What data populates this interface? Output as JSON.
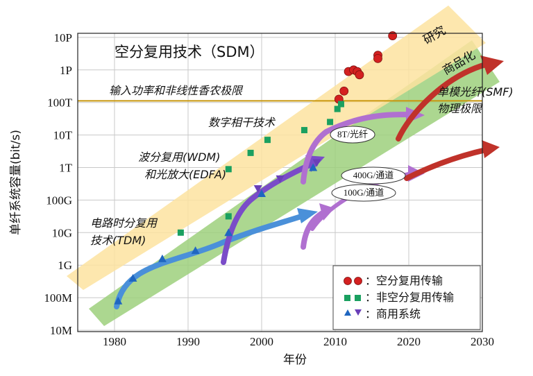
{
  "chart_data": {
    "type": "scatter",
    "title": "空分复用技术（SDM）",
    "xlabel": "年份",
    "ylabel": "单纤系统容量(bit/s)",
    "xlim": [
      1975,
      2030
    ],
    "x_ticks": [
      1980,
      1990,
      2000,
      2010,
      2020,
      2030
    ],
    "y_scale": "log",
    "y_ticks": [
      "10M",
      "100M",
      "1G",
      "10G",
      "100G",
      "1T",
      "10T",
      "100T",
      "1P",
      "10P"
    ],
    "y_ticks_log10": [
      7,
      8,
      9,
      10,
      11,
      12,
      13,
      14,
      15,
      16
    ],
    "grid": true,
    "legend_position": "bottom-right",
    "threshold_line": {
      "label": "输入功率和非线性香农极限",
      "value_log10": 14.05,
      "color": "#c8960c"
    },
    "series": [
      {
        "name": "空分复用传输",
        "marker": "circle",
        "color": "#d42020",
        "points": [
          {
            "x": 2010.5,
            "y_log10": 14.1
          },
          {
            "x": 2011.2,
            "y_log10": 14.35
          },
          {
            "x": 2011.8,
            "y_log10": 14.95
          },
          {
            "x": 2012.5,
            "y_log10": 15.0
          },
          {
            "x": 2013.0,
            "y_log10": 14.95
          },
          {
            "x": 2013.3,
            "y_log10": 14.85
          },
          {
            "x": 2015.8,
            "y_log10": 15.45
          },
          {
            "x": 2015.8,
            "y_log10": 15.35
          },
          {
            "x": 2017.8,
            "y_log10": 16.05
          }
        ]
      },
      {
        "name": "非空分复用传输",
        "marker": "square",
        "color": "#1aa060",
        "points": [
          {
            "x": 1989,
            "y_log10": 10.0
          },
          {
            "x": 1995.5,
            "y_log10": 10.5
          },
          {
            "x": 1995.5,
            "y_log10": 11.95
          },
          {
            "x": 1998.5,
            "y_log10": 12.45
          },
          {
            "x": 2000.8,
            "y_log10": 12.85
          },
          {
            "x": 2005.8,
            "y_log10": 13.15
          },
          {
            "x": 2009.3,
            "y_log10": 13.4
          },
          {
            "x": 2010.3,
            "y_log10": 13.8
          },
          {
            "x": 2010.8,
            "y_log10": 13.95
          }
        ]
      },
      {
        "name": "商用系统",
        "marker": "triangle",
        "color": "#1f66c0",
        "points": [
          {
            "x": 1980.5,
            "y_log10": 7.9
          },
          {
            "x": 1982.5,
            "y_log10": 8.6
          },
          {
            "x": 1986.5,
            "y_log10": 9.2
          },
          {
            "x": 1991,
            "y_log10": 9.45
          },
          {
            "x": 1995.5,
            "y_log10": 10.0
          },
          {
            "x": 2000,
            "y_log10": 11.2
          },
          {
            "x": 2007,
            "y_log10": 12.0
          }
        ]
      },
      {
        "name": "商用系统 (WDM)",
        "marker": "triangle-down",
        "color": "#6a3fb8",
        "points": [
          {
            "x": 1999.5,
            "y_log10": 11.35
          },
          {
            "x": 2002.5,
            "y_log10": 11.65
          },
          {
            "x": 2007.5,
            "y_log10": 12.15
          }
        ]
      }
    ],
    "annotations": {
      "tdm": [
        "电路时分复用",
        "技术(TDM)"
      ],
      "wdm": [
        "波分复用(WDM)",
        "和光放大(EDFA)"
      ],
      "coherent": "数字相干技术",
      "smf": [
        "单模光纤(SMF)",
        "物理极限"
      ],
      "research": "研究",
      "commercial": "商品化",
      "b1": "8T/光纤",
      "b2": "400G/通道",
      "b3": "100G/通道"
    },
    "legend": [
      {
        "label": "：空分复用传输",
        "color": "#d42020"
      },
      {
        "label": "：非空分复用传输",
        "color": "#1aa060"
      },
      {
        "label": "：商用系统",
        "color": "#1f66c0",
        "color2": "#6a3fb8"
      }
    ],
    "band_colors": {
      "research": "#fde3a0",
      "commercial": "#9ed07c"
    }
  }
}
